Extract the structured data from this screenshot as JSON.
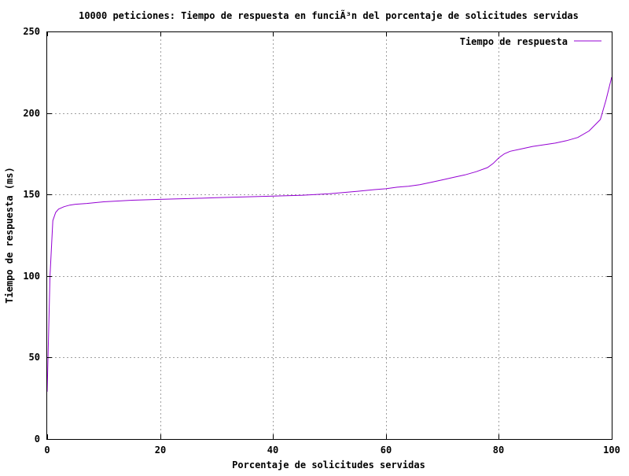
{
  "chart_data": {
    "type": "line",
    "title": "10000 peticiones: Tiempo de respuesta en funciÃ³n del porcentaje de solicitudes servidas",
    "xlabel": "Porcentaje de solicitudes servidas",
    "ylabel": "Tiempo de respuesta (ms)",
    "xlim": [
      0,
      100
    ],
    "ylim": [
      0,
      250
    ],
    "xticks": [
      0,
      20,
      40,
      60,
      80,
      100
    ],
    "yticks": [
      0,
      50,
      100,
      150,
      200,
      250
    ],
    "grid": true,
    "legend_position": "top-right",
    "series": [
      {
        "name": "Tiempo de respuesta",
        "color": "#9400d3",
        "x": [
          0,
          0.5,
          1,
          1.5,
          2,
          3,
          4,
          5,
          7,
          10,
          15,
          20,
          25,
          30,
          35,
          40,
          45,
          50,
          55,
          58,
          60,
          62,
          64,
          66,
          68,
          70,
          72,
          74,
          76,
          78,
          79,
          80,
          81,
          82,
          84,
          86,
          88,
          90,
          92,
          94,
          96,
          98,
          99,
          100
        ],
        "y": [
          29,
          100,
          134,
          139,
          141,
          142.5,
          143.5,
          144,
          144.5,
          145.5,
          146.5,
          147,
          147.5,
          148,
          148.5,
          149,
          149.5,
          150.5,
          152,
          153,
          153.5,
          154.5,
          155,
          156,
          157.5,
          159,
          160.5,
          162,
          164,
          166.5,
          169,
          172.5,
          175,
          176.5,
          178,
          179.5,
          180.5,
          181.5,
          183,
          185,
          189,
          196,
          208,
          222
        ]
      }
    ]
  }
}
